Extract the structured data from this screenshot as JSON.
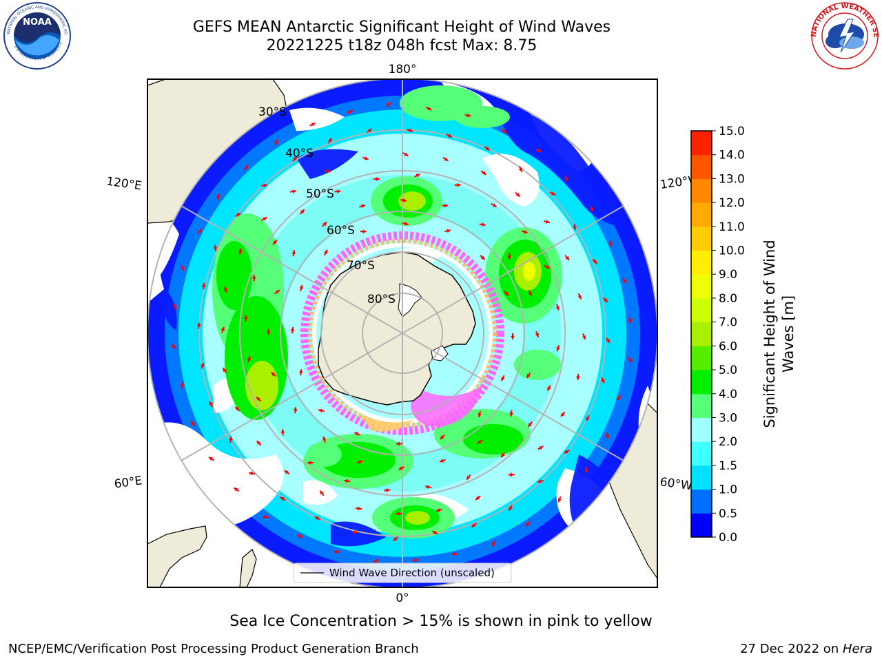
{
  "header": {
    "title_line1": "GEFS MEAN Antarctic Significant Height of Wind Waves",
    "title_line2": "20221225 t18z 048h fcst   Max: 8.75"
  },
  "logos": {
    "noaa_text": "NOAA",
    "noaa_ring": "NATIONAL OCEANIC AND ATMOSPHERIC ADMINISTRATION",
    "noaa_ring_bottom": "U.S. DEPARTMENT OF COMMERCE",
    "nws_ring": "NATIONAL WEATHER SERVICE"
  },
  "map": {
    "lon_labels": {
      "top": "180°",
      "bottom": "0°",
      "left_upper": "120°E",
      "left_lower": "60°E",
      "right_upper": "120°W",
      "right_lower": "60°W"
    },
    "lat_labels": [
      "30°S",
      "40°S",
      "50°S",
      "60°S",
      "70°S",
      "80°S"
    ],
    "legend_label": "Wind Wave Direction (unscaled)",
    "colors": {
      "land": "#eeecd8",
      "graticule": "#b3b3b3",
      "arrow": "#ff0000",
      "sea_ice_pink": "#ff66ff",
      "sea_ice_yellow": "#ffff66"
    }
  },
  "colorbar": {
    "label_line1": "Significant Height of Wind",
    "label_line2": "Waves [m]",
    "ticks": [
      "0.0",
      "0.5",
      "1.0",
      "1.5",
      "2.0",
      "3.0",
      "4.0",
      "5.0",
      "6.0",
      "7.0",
      "8.0",
      "9.0",
      "10.0",
      "11.0",
      "12.0",
      "13.0",
      "14.0",
      "15.0"
    ],
    "colors": [
      "#0000ff",
      "#0070ff",
      "#00e0ff",
      "#40ffff",
      "#a0ffff",
      "#55ff77",
      "#00ee00",
      "#55ee00",
      "#aaee00",
      "#ccff00",
      "#eeff00",
      "#ffee00",
      "#ffcc00",
      "#ffaa00",
      "#ff8800",
      "#ff5500",
      "#ff2200"
    ]
  },
  "notes": {
    "sea_ice": "Sea Ice Concentration > 15% is shown in pink to yellow"
  },
  "footer": {
    "left": "NCEP/EMC/Verification Post Processing Product Generation Branch",
    "right_prefix": "27 Dec 2022 on ",
    "right_italic": "Hera"
  }
}
